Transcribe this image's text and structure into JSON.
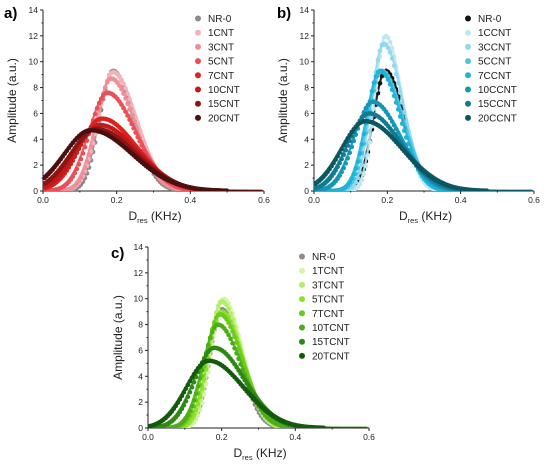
{
  "chart_data": [
    {
      "type": "scatter",
      "panel_label": "a)",
      "xlabel_main": "D",
      "xlabel_sub": "res",
      "xlabel_unit": " (KHz)",
      "ylabel": "Amplitude (a.u.)",
      "xlim": [
        0.0,
        0.6
      ],
      "ylim": [
        0,
        14
      ],
      "xticks": [
        "0.0",
        "0.2",
        "0.4",
        "0.6"
      ],
      "yticks": [
        "0",
        "2",
        "4",
        "6",
        "8",
        "10",
        "12",
        "14"
      ],
      "legend_position": "top-right",
      "series": [
        {
          "name": "NR-0",
          "color": "#8c8c8c",
          "center": 0.19,
          "amplitude": 9.3,
          "width": 0.045
        },
        {
          "name": "1CNT",
          "color": "#f6b1b9",
          "center": 0.19,
          "amplitude": 9.2,
          "width": 0.05
        },
        {
          "name": "3CNT",
          "color": "#ef8e98",
          "center": 0.185,
          "amplitude": 8.7,
          "width": 0.05
        },
        {
          "name": "5CNT",
          "color": "#ea4f58",
          "center": 0.175,
          "amplitude": 7.6,
          "width": 0.06
        },
        {
          "name": "7CNT",
          "color": "#e02020",
          "center": 0.16,
          "amplitude": 5.6,
          "width": 0.075
        },
        {
          "name": "10CNT",
          "color": "#c21a1a",
          "center": 0.155,
          "amplitude": 5.1,
          "width": 0.08
        },
        {
          "name": "15CNT",
          "color": "#8e1414",
          "center": 0.145,
          "amplitude": 4.8,
          "width": 0.085
        },
        {
          "name": "20CNT",
          "color": "#4a0f0f",
          "center": 0.13,
          "amplitude": 4.7,
          "width": 0.09
        }
      ]
    },
    {
      "type": "scatter",
      "panel_label": "b)",
      "xlabel_main": "D",
      "xlabel_sub": "res",
      "xlabel_unit": " (KHz)",
      "ylabel": "Amplitude (a.u.)",
      "xlim": [
        0.0,
        0.6
      ],
      "ylim": [
        0,
        14
      ],
      "xticks": [
        "0.0",
        "0.2",
        "0.4",
        "0.6"
      ],
      "yticks": [
        "0",
        "2",
        "4",
        "6",
        "8",
        "10",
        "12",
        "14"
      ],
      "legend_position": "top-right",
      "series": [
        {
          "name": "NR-0",
          "color": "#111111",
          "center": 0.195,
          "amplitude": 9.3,
          "width": 0.04
        },
        {
          "name": "1CCNT",
          "color": "#bfe8f2",
          "center": 0.195,
          "amplitude": 12.0,
          "width": 0.035
        },
        {
          "name": "3CCNT",
          "color": "#8fd9ee",
          "center": 0.19,
          "amplitude": 11.4,
          "width": 0.04
        },
        {
          "name": "5CCNT",
          "color": "#49c5e6",
          "center": 0.185,
          "amplitude": 9.3,
          "width": 0.045
        },
        {
          "name": "7CCNT",
          "color": "#1fb3d8",
          "center": 0.18,
          "amplitude": 9.3,
          "width": 0.045
        },
        {
          "name": "10CCNT",
          "color": "#1596b7",
          "center": 0.16,
          "amplitude": 6.9,
          "width": 0.06
        },
        {
          "name": "15CCNT",
          "color": "#117a8f",
          "center": 0.15,
          "amplitude": 6.0,
          "width": 0.07
        },
        {
          "name": "20CCNT",
          "color": "#0b5660",
          "center": 0.14,
          "amplitude": 5.4,
          "width": 0.08
        }
      ]
    },
    {
      "type": "scatter",
      "panel_label": "c)",
      "xlabel_main": "D",
      "xlabel_sub": "res",
      "xlabel_unit": " (KHz)",
      "ylabel": "Amplitude (a.u.)",
      "xlim": [
        0.0,
        0.6
      ],
      "ylim": [
        0,
        14
      ],
      "xticks": [
        "0.0",
        "0.2",
        "0.4",
        "0.6"
      ],
      "yticks": [
        "0",
        "2",
        "4",
        "6",
        "8",
        "10",
        "12",
        "14"
      ],
      "legend_position": "top-right",
      "series": [
        {
          "name": "NR-0",
          "color": "#8c8c8c",
          "center": 0.2,
          "amplitude": 9.2,
          "width": 0.04
        },
        {
          "name": "1TCNT",
          "color": "#d7f5a6",
          "center": 0.205,
          "amplitude": 10.0,
          "width": 0.04
        },
        {
          "name": "3TCNT",
          "color": "#b5ec6a",
          "center": 0.2,
          "amplitude": 9.8,
          "width": 0.042
        },
        {
          "name": "5TCNT",
          "color": "#8fe02d",
          "center": 0.2,
          "amplitude": 9.0,
          "width": 0.045
        },
        {
          "name": "7TCNT",
          "color": "#6acb1c",
          "center": 0.195,
          "amplitude": 8.8,
          "width": 0.048
        },
        {
          "name": "10TCNT",
          "color": "#4cad16",
          "center": 0.19,
          "amplitude": 8.0,
          "width": 0.05
        },
        {
          "name": "15TCNT",
          "color": "#2f8812",
          "center": 0.18,
          "amplitude": 6.2,
          "width": 0.065
        },
        {
          "name": "20TCNT",
          "color": "#145a0c",
          "center": 0.165,
          "amplitude": 5.2,
          "width": 0.075
        }
      ]
    }
  ]
}
